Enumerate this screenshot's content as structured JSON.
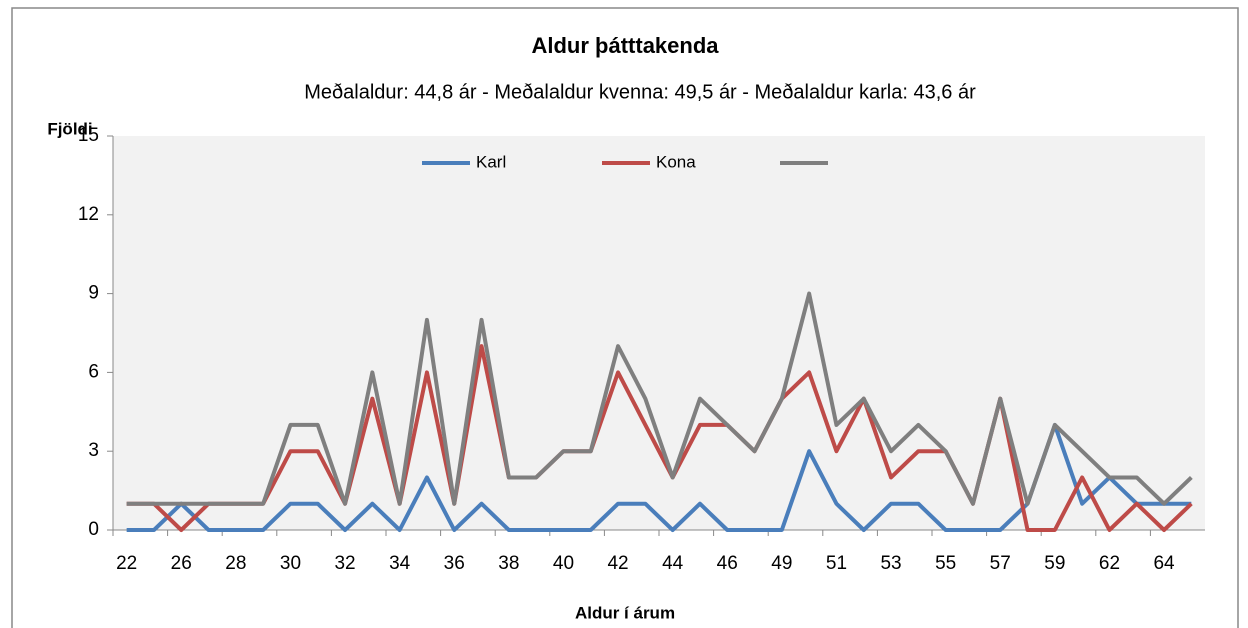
{
  "chart_data": {
    "type": "line",
    "title": "Aldur þátttakenda",
    "subtitle": "Meðalaldur:  44,8 ár - Meðalaldur kvenna:  49,5 ár - Meðalaldur karla:  43,6 ár",
    "y_label": "Fjöldi",
    "x_label": "Aldur í árum",
    "categories": [
      "22",
      null,
      "26",
      null,
      "28",
      null,
      "30",
      null,
      "32",
      null,
      "34",
      null,
      "36",
      null,
      "38",
      null,
      "40",
      null,
      "42",
      null,
      "44",
      null,
      "46",
      null,
      "49",
      null,
      "51",
      null,
      "53",
      null,
      "55",
      null,
      "57",
      null,
      "59",
      null,
      "62",
      null,
      "64",
      null
    ],
    "series": [
      {
        "name": "Karl",
        "color": "#4a7ebb",
        "values": [
          0,
          0,
          1,
          0,
          0,
          0,
          1,
          1,
          0,
          1,
          0,
          2,
          0,
          1,
          0,
          0,
          0,
          0,
          1,
          1,
          0,
          1,
          0,
          0,
          0,
          3,
          1,
          0,
          1,
          1,
          0,
          0,
          0,
          1,
          4,
          1,
          2,
          1,
          1,
          1
        ]
      },
      {
        "name": "Kona",
        "color": "#be4b48",
        "values": [
          1,
          1,
          0,
          1,
          1,
          1,
          3,
          3,
          1,
          5,
          1,
          6,
          1,
          7,
          2,
          2,
          3,
          3,
          6,
          4,
          2,
          4,
          4,
          3,
          5,
          6,
          3,
          5,
          2,
          3,
          3,
          1,
          5,
          0,
          0,
          2,
          0,
          1,
          0,
          1
        ]
      },
      {
        "color": "#7f7f7f",
        "values": [
          1,
          1,
          1,
          1,
          1,
          1,
          4,
          4,
          1,
          6,
          1,
          8,
          1,
          8,
          2,
          2,
          3,
          3,
          7,
          5,
          2,
          5,
          4,
          3,
          5,
          9,
          4,
          5,
          3,
          4,
          3,
          1,
          5,
          1,
          4,
          3,
          2,
          2,
          1,
          2
        ]
      }
    ],
    "ylim": [
      0,
      15
    ],
    "yticks": [
      0,
      3,
      6,
      9,
      12,
      15
    ],
    "grid": false,
    "legend": "top"
  }
}
